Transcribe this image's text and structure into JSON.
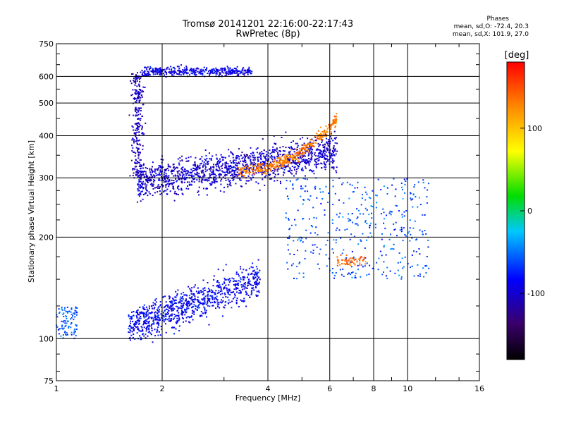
{
  "chart_data": {
    "type": "scatter",
    "title": "Tromsø 20141201 22:16:00-22:17:43",
    "subtitle": "RwPretec (8p)",
    "xlabel": "Frequency [MHz]",
    "ylabel": "Stationary phase Virtual Height [km]",
    "xscale": "log",
    "yscale": "log",
    "xlim": [
      1,
      16
    ],
    "ylim": [
      75,
      750
    ],
    "xticks": [
      "1",
      "2",
      "4",
      "6",
      "8",
      "10",
      "16"
    ],
    "yticks": [
      "75",
      "100",
      "200",
      "300",
      "400",
      "500",
      "600",
      "750"
    ],
    "grid": true,
    "stats": {
      "heading": "Phases",
      "line_o": "mean, sd,O: -72.4, 20.3",
      "line_x": "mean, sd,X: 101.9, 27.0"
    },
    "colorbar": {
      "label": "[deg]",
      "ticks": [
        "100",
        "0",
        "-100"
      ],
      "range": [
        -180,
        180
      ]
    },
    "series": [
      {
        "trace": "o-upper-band",
        "x_range": [
          1.7,
          6.3
        ],
        "y_start": 290,
        "y_end": 360,
        "phase": -100
      },
      {
        "trace": "o-top-band",
        "x_range": [
          1.75,
          3.6
        ],
        "y": 620,
        "phase": -90
      },
      {
        "trace": "o-cusp",
        "x": 1.7,
        "y_range": [
          300,
          620
        ],
        "phase": -105
      },
      {
        "trace": "x-upper-curve",
        "x_range": [
          3.3,
          6.3
        ],
        "y_start": 315,
        "y_end": 450,
        "phase": 130
      },
      {
        "trace": "e-layer",
        "x_range": [
          1.6,
          3.8
        ],
        "y_start": 108,
        "y_end": 150,
        "phase": -85
      },
      {
        "trace": "low-cluster",
        "x_range": [
          1.0,
          1.15
        ],
        "y_range": [
          100,
          125
        ],
        "phase": -55
      },
      {
        "trace": "scattered-f",
        "x_range": [
          4.5,
          11.5
        ],
        "y_range": [
          150,
          300
        ],
        "phase": -60
      },
      {
        "trace": "orange-cluster",
        "x_range": [
          6.3,
          7.6
        ],
        "y": 170,
        "phase": 140
      }
    ]
  }
}
